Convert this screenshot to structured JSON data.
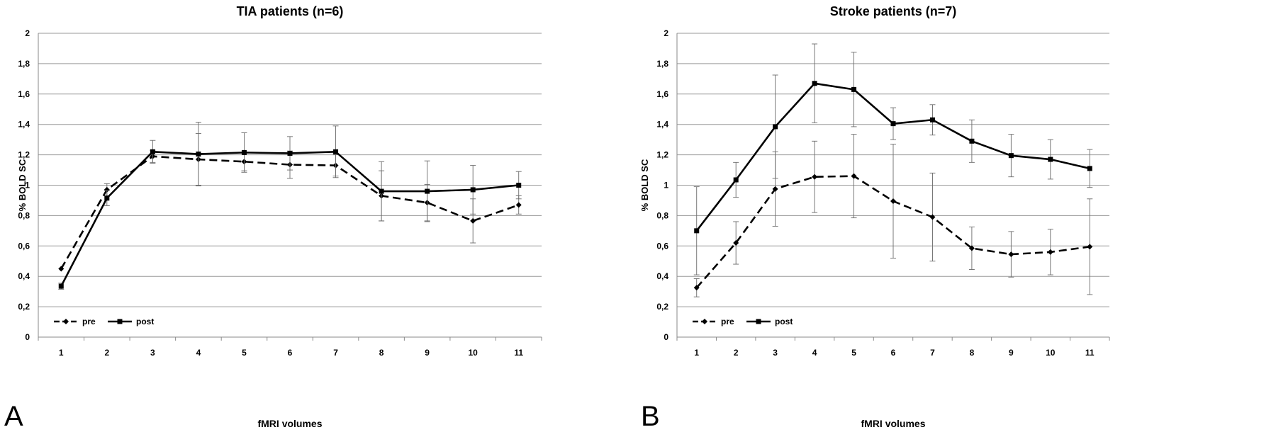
{
  "chart_data": [
    {
      "type": "line",
      "panel_letter": "A",
      "title": "TIA patients (n=6)",
      "xlabel": "fMRI volumes",
      "ylabel": "% BOLD  SC",
      "categories": [
        "1",
        "2",
        "3",
        "4",
        "5",
        "6",
        "7",
        "8",
        "9",
        "10",
        "11"
      ],
      "ylim": [
        0,
        2
      ],
      "yticks": [
        "0",
        "0,2",
        "0,4",
        "0,6",
        "0,8",
        "1",
        "1,2",
        "1,4",
        "1,6",
        "1,8",
        "2"
      ],
      "grid": true,
      "legend_position": "bottom-left",
      "series": [
        {
          "name": "pre",
          "style": "dashed",
          "marker": "diamond",
          "values": [
            0.45,
            0.97,
            1.19,
            1.17,
            1.155,
            1.135,
            1.13,
            0.93,
            0.885,
            0.765,
            0.87
          ],
          "error": [
            0.0,
            0.04,
            0.04,
            0.17,
            0.06,
            0.09,
            0.07,
            0.165,
            0.12,
            0.145,
            0.06
          ]
        },
        {
          "name": "post",
          "style": "solid",
          "marker": "square",
          "values": [
            0.335,
            0.915,
            1.22,
            1.205,
            1.215,
            1.21,
            1.22,
            0.96,
            0.96,
            0.97,
            1.0
          ],
          "error": [
            0.02,
            0.05,
            0.075,
            0.21,
            0.13,
            0.11,
            0.17,
            0.195,
            0.2,
            0.16,
            0.09
          ]
        }
      ]
    },
    {
      "type": "line",
      "panel_letter": "B",
      "title": "Stroke patients (n=7)",
      "xlabel": "fMRI volumes",
      "ylabel": "% BOLD  SC",
      "categories": [
        "1",
        "2",
        "3",
        "4",
        "5",
        "6",
        "7",
        "8",
        "9",
        "10",
        "11"
      ],
      "ylim": [
        0,
        2
      ],
      "yticks": [
        "0",
        "0,2",
        "0,4",
        "0,6",
        "0,8",
        "1",
        "1,2",
        "1,4",
        "1,6",
        "1,8",
        "2"
      ],
      "grid": true,
      "legend_position": "bottom-left",
      "series": [
        {
          "name": "pre",
          "style": "dashed",
          "marker": "diamond",
          "values": [
            0.325,
            0.62,
            0.975,
            1.055,
            1.06,
            0.895,
            0.79,
            0.585,
            0.545,
            0.56,
            0.595
          ],
          "error": [
            0.06,
            0.14,
            0.245,
            0.235,
            0.275,
            0.375,
            0.29,
            0.14,
            0.15,
            0.15,
            0.315
          ]
        },
        {
          "name": "post",
          "style": "solid",
          "marker": "square",
          "values": [
            0.7,
            1.035,
            1.385,
            1.67,
            1.63,
            1.405,
            1.43,
            1.29,
            1.195,
            1.17,
            1.11
          ],
          "error": [
            0.29,
            0.115,
            0.34,
            0.26,
            0.245,
            0.105,
            0.1,
            0.14,
            0.14,
            0.13,
            0.125
          ]
        }
      ]
    }
  ]
}
